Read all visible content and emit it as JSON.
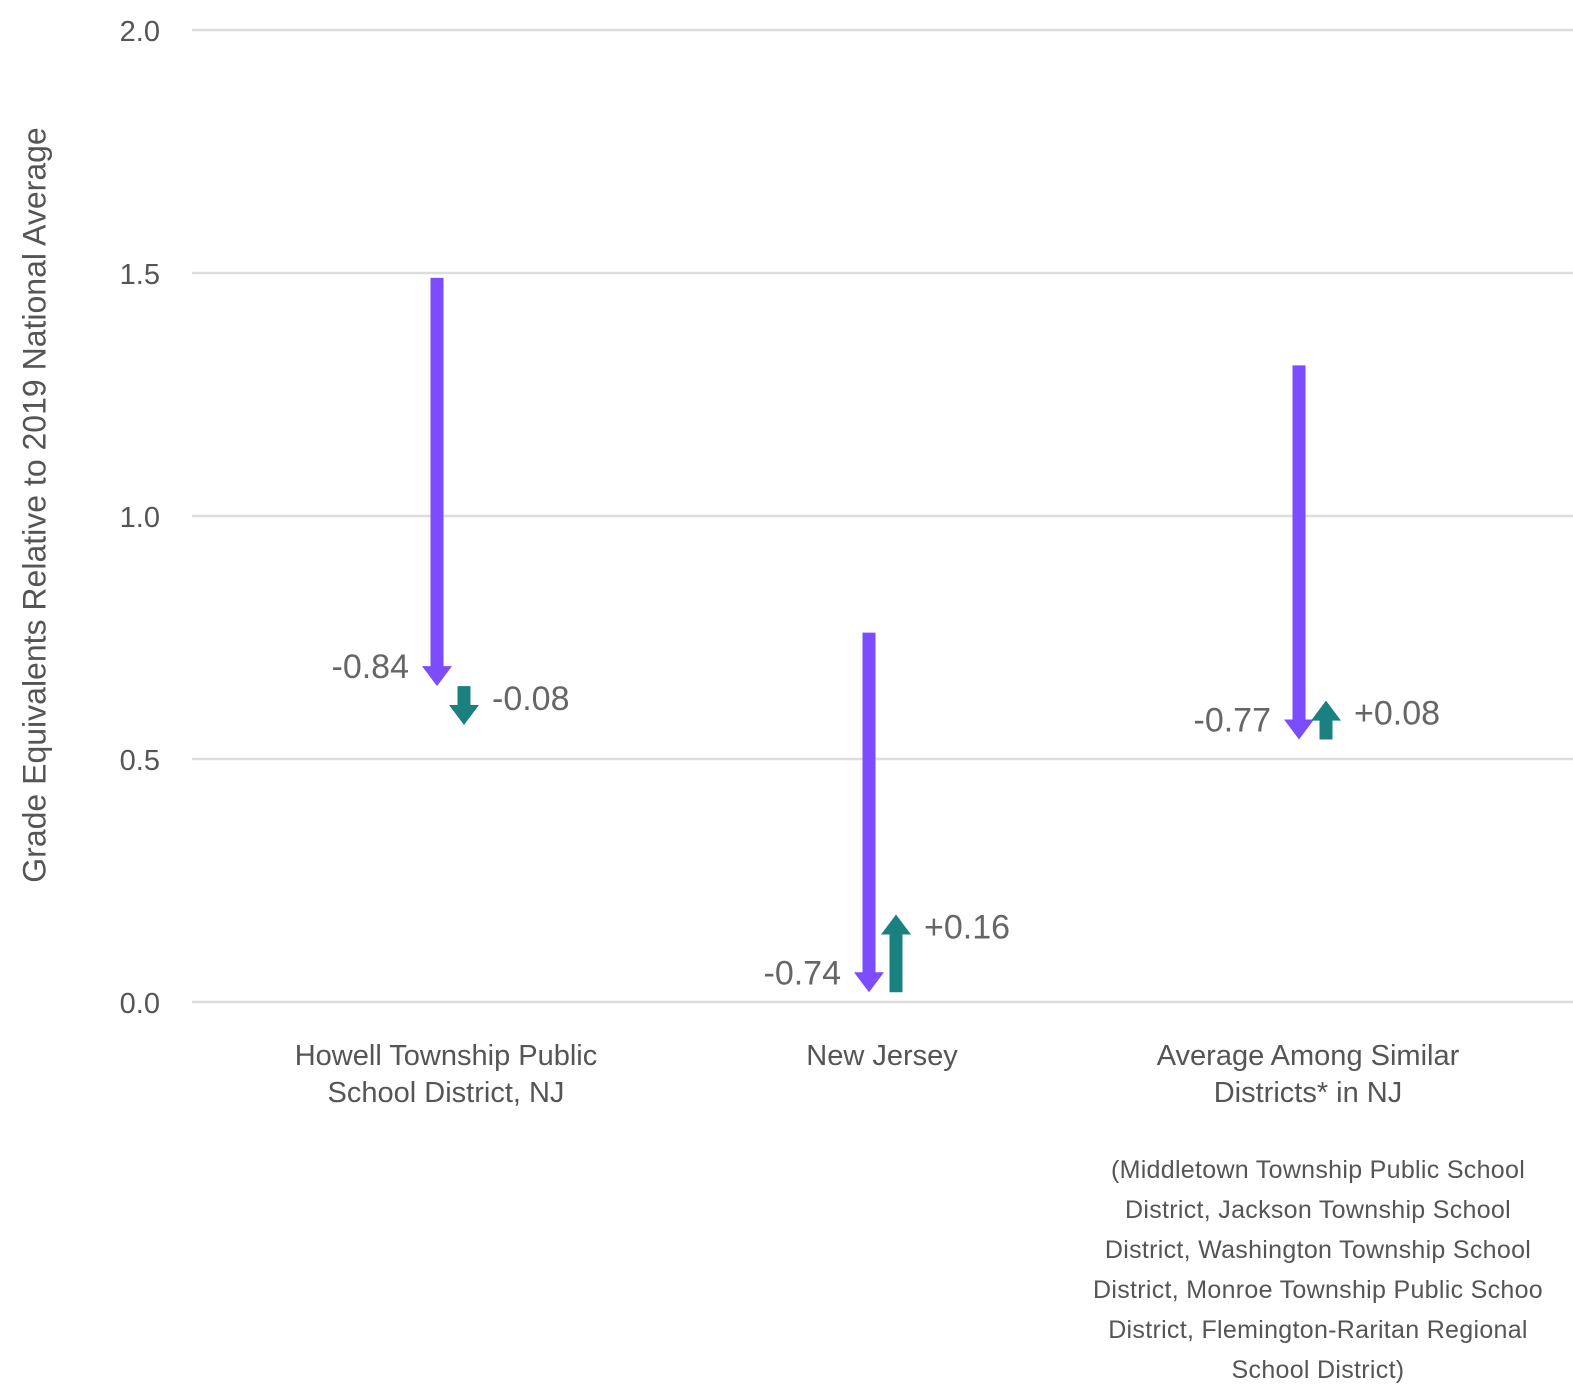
{
  "chart_data": {
    "type": "arrow",
    "ylabel": "Grade Equivalents Relative to 2019 National Average",
    "ylim": [
      0,
      2.0
    ],
    "yticks": [
      "0.0",
      "0.5",
      "1.0",
      "1.5",
      "2.0"
    ],
    "grid": true,
    "categories": [
      "Howell Township Public\nSchool District, NJ",
      "New Jersey",
      "Average Among Similar\nDistricts* in NJ"
    ],
    "note": "(Middletown Township Public School\nDistrict, Jackson Township School\nDistrict, Washington Township School\nDistrict, Monroe Township Public Schoo\nDistrict, Flemington-Raritan Regional\nSchool District)",
    "series": [
      {
        "start": [
          1.49,
          0.76,
          1.31
        ],
        "change": [
          -0.84,
          -0.74,
          -0.77
        ],
        "labels": [
          "-0.84",
          "-0.74",
          "-0.77"
        ],
        "color": "#7c4dff"
      },
      {
        "start": [
          0.65,
          0.02,
          0.54
        ],
        "change": [
          -0.08,
          0.16,
          0.08
        ],
        "labels": [
          "-0.08",
          "+0.16",
          "+0.08"
        ],
        "color": "#1b8080"
      }
    ]
  }
}
